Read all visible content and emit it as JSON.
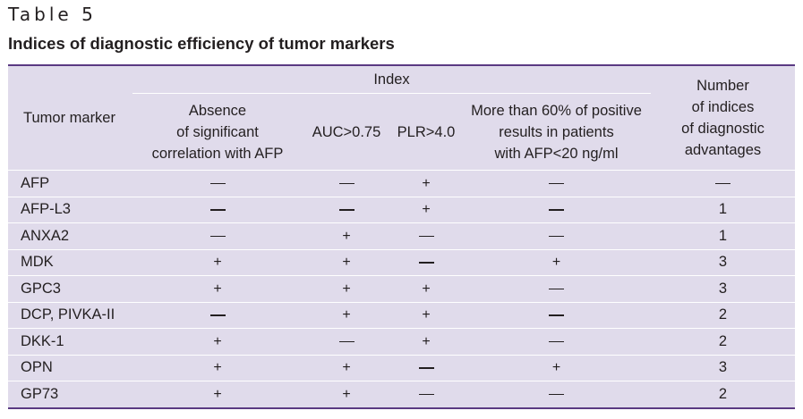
{
  "table_label": "Table 5",
  "caption": "Indices of diagnostic efficiency of tumor markers",
  "headers": {
    "marker": "Tumor marker",
    "index_group": "Index",
    "absence": [
      "Absence",
      "of significant",
      "correlation with AFP"
    ],
    "auc": "AUC>0.75",
    "plr": "PLR>4.0",
    "more": [
      "More than 60% of positive",
      "results in patients",
      "with AFP<20 ng/ml"
    ],
    "number": [
      "Number",
      "of indices",
      "of diagnostic",
      "advantages"
    ]
  },
  "rows": [
    {
      "marker": "AFP",
      "absence": "—",
      "auc": "—",
      "plr": "+",
      "more": "—",
      "number": "—"
    },
    {
      "marker": "AFP-L3",
      "absence": "—",
      "auc": "—",
      "plr": "+",
      "more": "—",
      "number": "1"
    },
    {
      "marker": "ANXA2",
      "absence": "—",
      "auc": "+",
      "plr": "—",
      "more": "—",
      "number": "1"
    },
    {
      "marker": "MDK",
      "absence": "+",
      "auc": "+",
      "plr": "—",
      "more": "+",
      "number": "3"
    },
    {
      "marker": "GPC3",
      "absence": "+",
      "auc": "+",
      "plr": "+",
      "more": "—",
      "number": "3"
    },
    {
      "marker": "DCP, PIVKA-II",
      "absence": "—",
      "auc": "+",
      "plr": "+",
      "more": "—",
      "number": "2"
    },
    {
      "marker": "DKK-1",
      "absence": "+",
      "auc": "—",
      "plr": "+",
      "more": "—",
      "number": "2"
    },
    {
      "marker": "OPN",
      "absence": "+",
      "auc": "+",
      "plr": "—",
      "more": "+",
      "number": "3"
    },
    {
      "marker": "GP73",
      "absence": "+",
      "auc": "+",
      "plr": "—",
      "more": "—",
      "number": "2"
    }
  ],
  "colors": {
    "table_background": "#e0dbeb",
    "rule": "#5a3a82",
    "text": "#231f20"
  }
}
